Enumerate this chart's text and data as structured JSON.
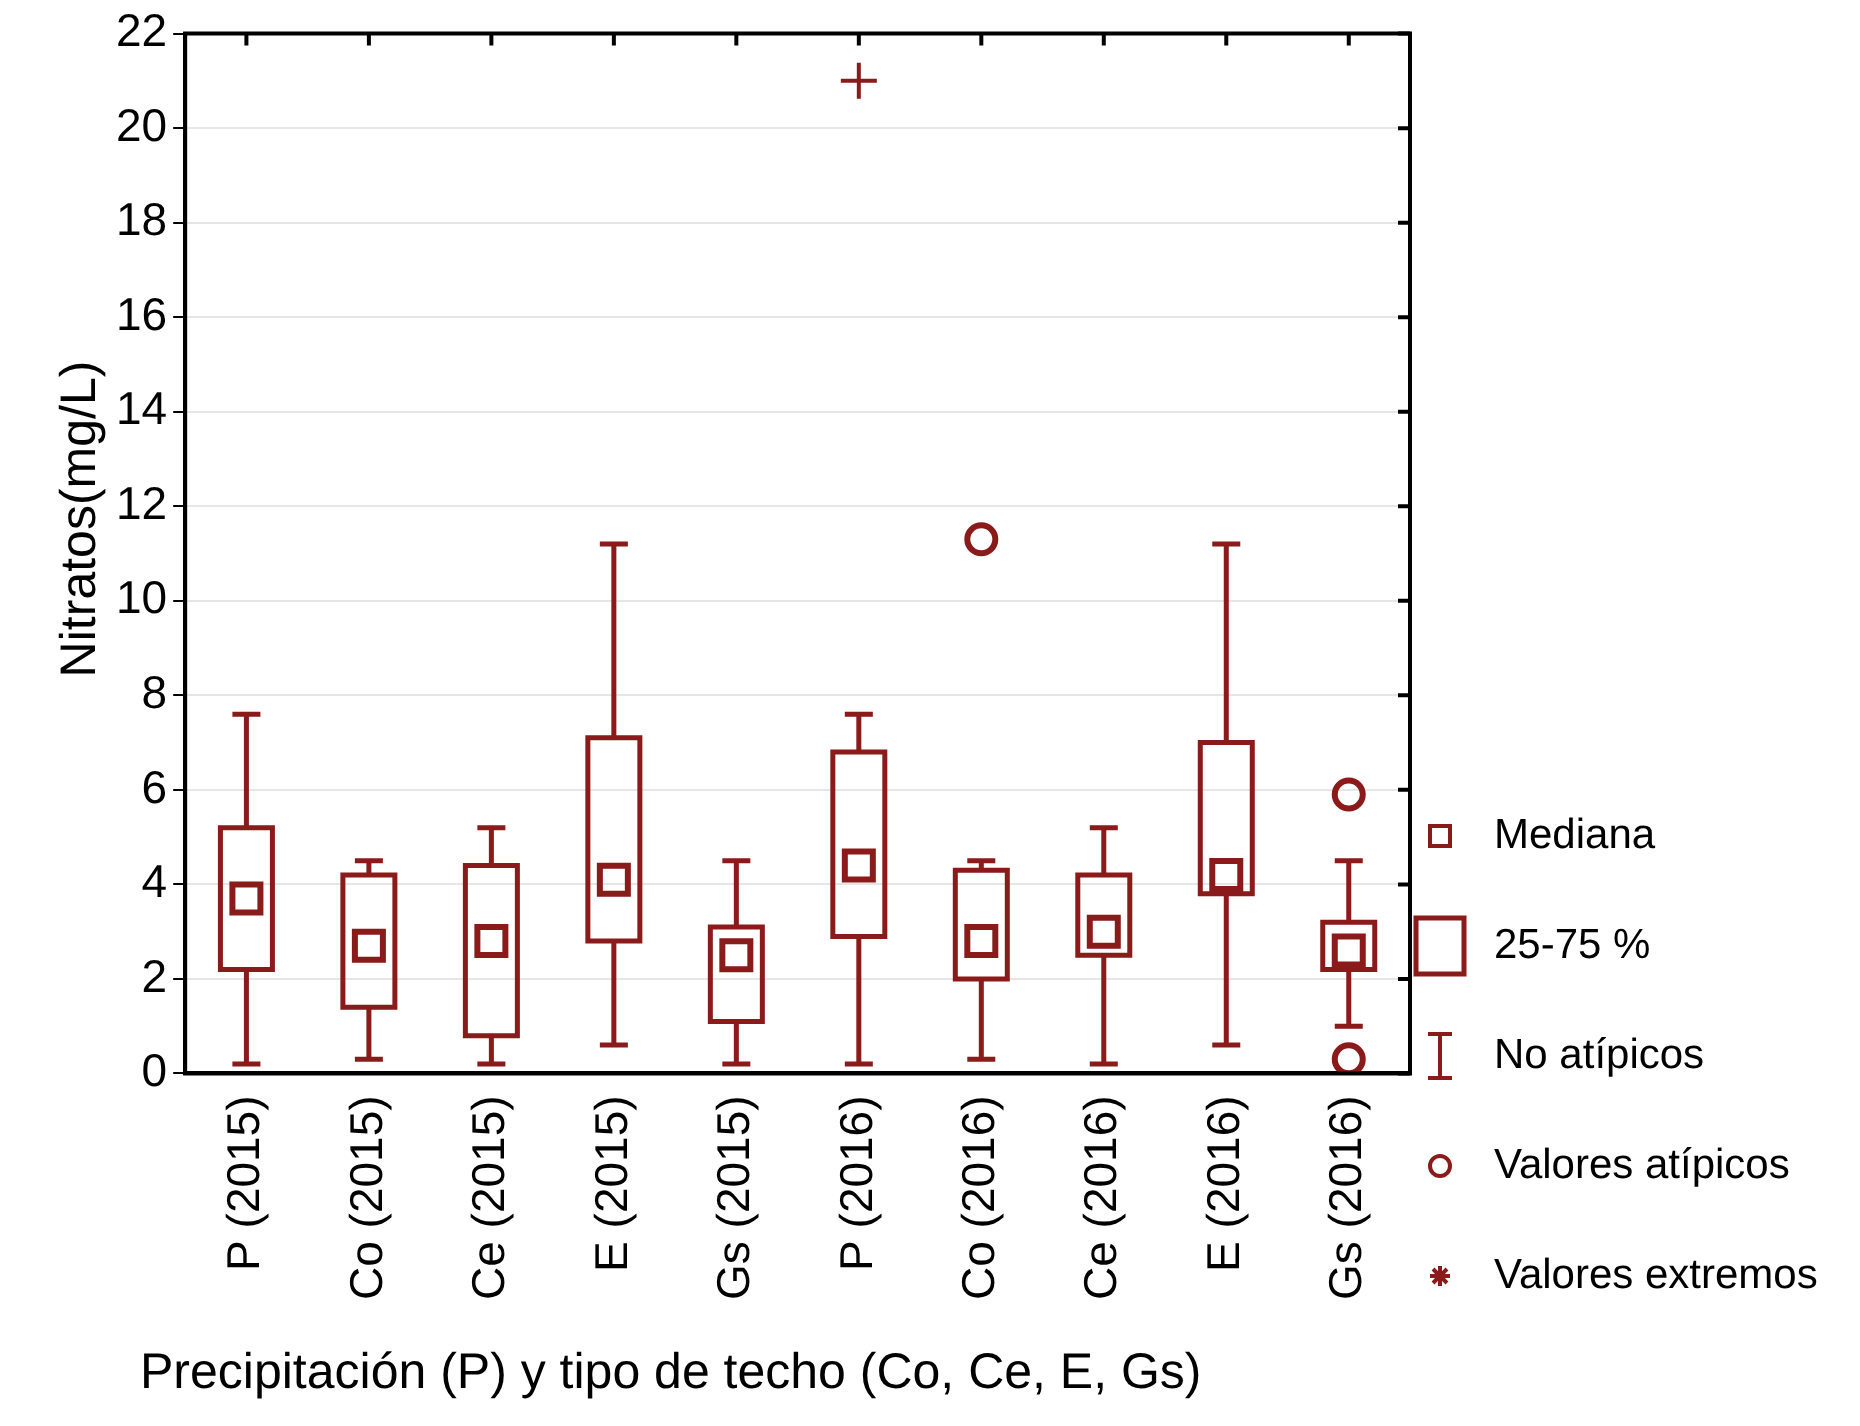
{
  "chart_data": {
    "type": "box",
    "xlabel": "Precipitación (P) y tipo de techo (Co, Ce, E, Gs)",
    "ylabel": "Nitratos(mg/L)",
    "categories": [
      "P (2015)",
      "Co (2015)",
      "Ce (2015)",
      "E (2015)",
      "Gs (2015)",
      "P (2016)",
      "Co (2016)",
      "Ce (2016)",
      "E (2016)",
      "Gs (2016)"
    ],
    "ylim": [
      0,
      22
    ],
    "yticks": [
      0,
      2,
      4,
      6,
      8,
      10,
      12,
      14,
      16,
      18,
      20,
      22
    ],
    "grid": "y",
    "legend": "right",
    "annotations": [
      "Mediana",
      "25-75 %",
      "No atípicos",
      "Valores atípicos"
    ],
    "series": [
      {
        "type": "box",
        "color": "#8b1a1a",
        "boxes": [
          {
            "low": 0.2,
            "q1": 2.2,
            "median": 3.7,
            "q3": 5.2,
            "high": 7.6
          },
          {
            "low": 0.3,
            "q1": 1.4,
            "median": 2.7,
            "q3": 4.2,
            "high": 4.5
          },
          {
            "low": 0.2,
            "q1": 0.8,
            "median": 2.8,
            "q3": 4.4,
            "high": 5.2
          },
          {
            "low": 0.6,
            "q1": 2.8,
            "median": 4.1,
            "q3": 7.1,
            "high": 11.2
          },
          {
            "low": 0.2,
            "q1": 1.1,
            "median": 2.5,
            "q3": 3.1,
            "high": 4.5
          },
          {
            "low": 0.2,
            "q1": 2.9,
            "median": 4.4,
            "q3": 6.8,
            "high": 7.6
          },
          {
            "low": 0.3,
            "q1": 2.0,
            "median": 2.8,
            "q3": 4.3,
            "high": 4.5,
            "outliers": [
              11.3
            ]
          },
          {
            "low": 0.2,
            "q1": 2.5,
            "median": 3.0,
            "q3": 4.2,
            "high": 5.2
          },
          {
            "low": 0.6,
            "q1": 3.8,
            "median": 4.2,
            "q3": 7.0,
            "high": 11.2
          },
          {
            "low": 1.0,
            "q1": 2.2,
            "median": 2.6,
            "q3": 3.2,
            "high": 4.5,
            "outliers": [
              5.9,
              0.3
            ]
          }
        ]
      },
      {
        "type": "scatter",
        "name": "Valores extremos",
        "color": "#8b1a1a",
        "marker": "cross",
        "x": [
          "P (2016)"
        ],
        "values": [
          21.0
        ]
      }
    ]
  }
}
